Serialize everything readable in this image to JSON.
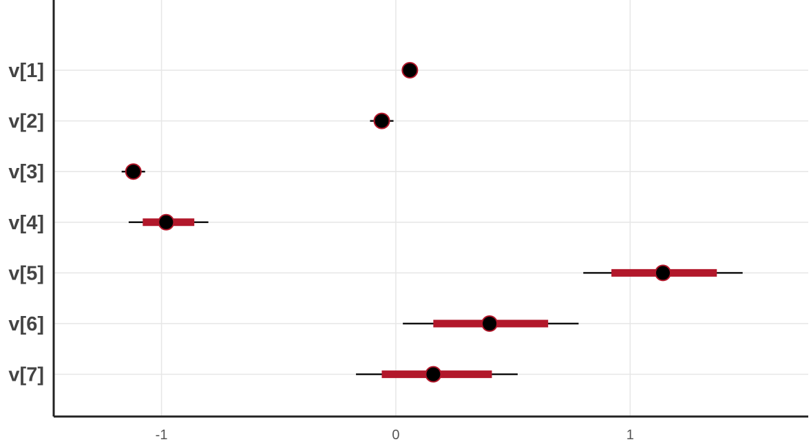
{
  "chart_data": {
    "type": "interval",
    "title": "",
    "xlabel": "",
    "ylabel": "",
    "xlim": [
      -1.46,
      1.76
    ],
    "x_ticks": [
      -1,
      0,
      1
    ],
    "x_tick_labels": [
      "-1",
      "0",
      "1"
    ],
    "grid": true,
    "colors": {
      "inner_interval": "#b2182b",
      "outer_interval": "#111111",
      "point": "#000000",
      "point_edge": "#b2182b"
    },
    "parameters": [
      {
        "label": "v[1]",
        "estimate": 0.06,
        "inner": [
          0.04,
          0.08
        ],
        "outer": [
          0.03,
          0.09
        ]
      },
      {
        "label": "v[2]",
        "estimate": -0.06,
        "inner": [
          -0.09,
          -0.03
        ],
        "outer": [
          -0.11,
          -0.01
        ]
      },
      {
        "label": "v[3]",
        "estimate": -1.12,
        "inner": [
          -1.15,
          -1.09
        ],
        "outer": [
          -1.17,
          -1.07
        ]
      },
      {
        "label": "v[4]",
        "estimate": -0.98,
        "inner": [
          -1.08,
          -0.86
        ],
        "outer": [
          -1.14,
          -0.8
        ]
      },
      {
        "label": "v[5]",
        "estimate": 1.14,
        "inner": [
          0.92,
          1.37
        ],
        "outer": [
          0.8,
          1.48
        ]
      },
      {
        "label": "v[6]",
        "estimate": 0.4,
        "inner": [
          0.16,
          0.65
        ],
        "outer": [
          0.03,
          0.78
        ]
      },
      {
        "label": "v[7]",
        "estimate": 0.16,
        "inner": [
          -0.06,
          0.41
        ],
        "outer": [
          -0.17,
          0.52
        ]
      }
    ]
  }
}
